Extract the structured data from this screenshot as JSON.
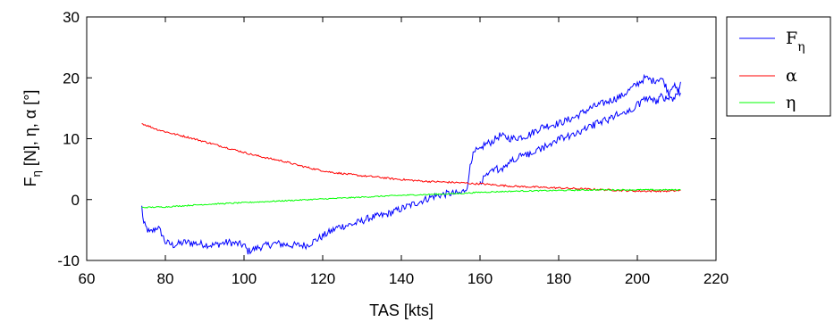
{
  "chart_data": {
    "type": "line",
    "xlabel": "TAS [kts]",
    "ylabel_parts": [
      "F",
      "η",
      " [N], η, α [°]"
    ],
    "xlim": [
      60,
      220
    ],
    "ylim": [
      -10,
      30
    ],
    "xticks": [
      60,
      80,
      100,
      120,
      140,
      160,
      180,
      200,
      220
    ],
    "yticks": [
      -10,
      0,
      10,
      20,
      30
    ],
    "grid": false,
    "legend_position": "outside-top-right",
    "series": [
      {
        "name": "F",
        "name_subscript": "η",
        "color": "#0000ff",
        "noise": 0.6,
        "x": [
          74,
          74.5,
          75,
          76,
          77,
          78,
          79,
          80,
          82,
          85,
          88,
          92,
          96,
          100,
          101,
          104,
          108,
          112,
          116,
          120,
          124,
          128,
          132,
          136,
          140,
          144,
          148,
          152,
          155,
          156,
          157,
          157.5,
          158,
          159,
          160,
          161,
          163,
          165,
          168,
          172,
          176,
          180,
          184,
          188,
          192,
          196,
          198,
          200,
          202,
          204,
          206,
          207,
          208,
          209,
          210,
          211
        ],
        "y": [
          -1.2,
          -4,
          -4.5,
          -5.5,
          -5,
          -4.5,
          -5.5,
          -7,
          -7.5,
          -7,
          -7.2,
          -7.5,
          -7,
          -7.5,
          -8.5,
          -7.8,
          -7.2,
          -7.5,
          -7.5,
          -6,
          -4.5,
          -4,
          -3,
          -2.5,
          -1.5,
          -0.5,
          0.5,
          1,
          1,
          1.5,
          2.5,
          6,
          7,
          8,
          8,
          9,
          9.5,
          10.5,
          10,
          10.5,
          12,
          12.5,
          13.5,
          15,
          16,
          17,
          18,
          19,
          20,
          19.5,
          20,
          19,
          17.5,
          19,
          18,
          17.5
        ],
        "x2": [
          211,
          210,
          209,
          208,
          207,
          206,
          205,
          204,
          202,
          200,
          198,
          195,
          192,
          188,
          184,
          180,
          176,
          173,
          170,
          168,
          166,
          164,
          162,
          160
        ],
        "y2": [
          19,
          17,
          16.5,
          17,
          16.5,
          17,
          16,
          16.5,
          16.5,
          15.5,
          14.5,
          14,
          13,
          12,
          10.5,
          10,
          8.5,
          7.5,
          7,
          6.5,
          5,
          5,
          4,
          3
        ]
      },
      {
        "name": "α",
        "color": "#ff0000",
        "noise": 0.15,
        "x": [
          74,
          78,
          82,
          86,
          90,
          94,
          98,
          102,
          106,
          110,
          114,
          118,
          122,
          126,
          130,
          134,
          138,
          142,
          146,
          150,
          154,
          157,
          158,
          160,
          164,
          168,
          172,
          176,
          180,
          184,
          188,
          192,
          196,
          200,
          204,
          208,
          211
        ],
        "y": [
          12.5,
          11.5,
          10.8,
          10.2,
          9.5,
          8.8,
          8.1,
          7.4,
          6.8,
          6.3,
          5.6,
          5,
          4.5,
          4.2,
          3.9,
          3.7,
          3.4,
          3.2,
          3,
          2.9,
          2.8,
          2.7,
          2.6,
          2.6,
          2.4,
          2.2,
          2.1,
          2,
          1.9,
          1.8,
          1.7,
          1.6,
          1.5,
          1.4,
          1.4,
          1.4,
          1.5
        ]
      },
      {
        "name": "η",
        "color": "#00ff00",
        "noise": 0.1,
        "x": [
          74,
          80,
          85,
          90,
          100,
          110,
          120,
          130,
          140,
          150,
          155,
          160,
          170,
          180,
          190,
          200,
          205,
          211
        ],
        "y": [
          -1.3,
          -1.2,
          -1,
          -0.8,
          -0.5,
          -0.2,
          0.1,
          0.4,
          0.7,
          0.9,
          1,
          1.2,
          1.4,
          1.5,
          1.6,
          1.6,
          1.6,
          1.6
        ]
      }
    ]
  }
}
